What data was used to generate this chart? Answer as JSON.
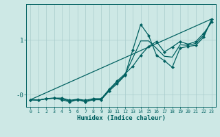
{
  "xlabel": "Humidex (Indice chaleur)",
  "background_color": "#cde8e5",
  "grid_color": "#a8cccc",
  "line_color": "#006060",
  "xlim": [
    -0.5,
    23.5
  ],
  "ylim": [
    -0.22,
    1.65
  ],
  "yticks": [
    0,
    1
  ],
  "ytick_labels": [
    "-0",
    "1"
  ],
  "xticks": [
    0,
    1,
    2,
    3,
    4,
    5,
    6,
    7,
    8,
    9,
    10,
    11,
    12,
    13,
    14,
    15,
    16,
    17,
    18,
    19,
    20,
    21,
    22,
    23
  ],
  "series_jagged_x": [
    0,
    1,
    2,
    3,
    4,
    5,
    6,
    7,
    8,
    9,
    10,
    11,
    12,
    13,
    14,
    15,
    16,
    17,
    18,
    19,
    20,
    21,
    22,
    23
  ],
  "series_jagged_y": [
    -0.09,
    -0.1,
    -0.07,
    -0.06,
    -0.09,
    -0.13,
    -0.09,
    -0.13,
    -0.09,
    -0.09,
    0.07,
    0.2,
    0.35,
    0.82,
    1.28,
    1.08,
    0.72,
    0.62,
    0.5,
    0.85,
    0.88,
    0.9,
    1.05,
    1.38
  ],
  "series_smooth_x": [
    0,
    1,
    2,
    3,
    4,
    5,
    6,
    7,
    8,
    9,
    10,
    11,
    12,
    13,
    14,
    15,
    16,
    17,
    18,
    19,
    20,
    21,
    22,
    23
  ],
  "series_smooth_y": [
    -0.09,
    -0.1,
    -0.07,
    -0.06,
    -0.06,
    -0.1,
    -0.08,
    -0.1,
    -0.07,
    -0.07,
    0.1,
    0.25,
    0.38,
    0.52,
    0.72,
    0.88,
    0.97,
    0.78,
    0.87,
    0.97,
    0.92,
    0.97,
    1.12,
    1.32
  ],
  "series_trend1_x": [
    0,
    23
  ],
  "series_trend1_y": [
    -0.09,
    1.38
  ],
  "series_trend2_x": [
    0,
    1,
    2,
    3,
    4,
    5,
    6,
    7,
    8,
    9,
    10,
    11,
    12,
    13,
    14,
    15,
    16,
    17,
    18,
    19,
    20,
    21,
    22,
    23
  ],
  "series_trend2_y": [
    -0.09,
    -0.095,
    -0.075,
    -0.065,
    -0.072,
    -0.115,
    -0.087,
    -0.115,
    -0.082,
    -0.082,
    0.088,
    0.225,
    0.363,
    0.67,
    0.98,
    0.98,
    0.845,
    0.7,
    0.685,
    0.91,
    0.9,
    0.935,
    1.085,
    1.35
  ]
}
